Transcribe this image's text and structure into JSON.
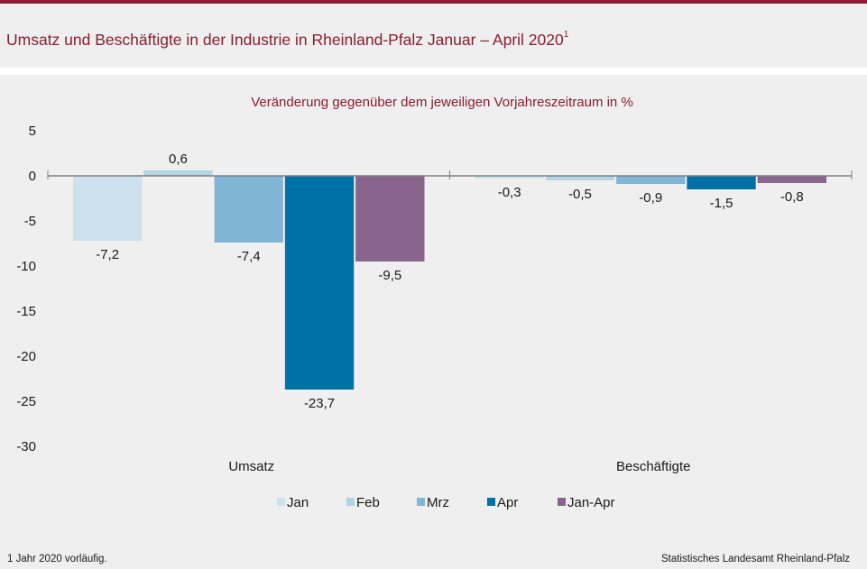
{
  "header": {
    "title": "Umsatz und Beschäftigte in der Industrie in Rheinland-Pfalz Januar – April 2020",
    "title_footnote_mark": "1",
    "accent_color": "#8b1c33"
  },
  "footer": {
    "note": "1 Jahr 2020 vorläufig.",
    "source": "Statistisches Landesamt Rheinland-Pfalz"
  },
  "chart_data": {
    "type": "bar",
    "title": "Veränderung gegenüber dem jeweiligen Vorjahreszeitraum in %",
    "xlabel": "",
    "ylabel": "",
    "categories": [
      "Umsatz",
      "Beschäftigte"
    ],
    "series": [
      {
        "name": "Jan",
        "color": "#cde2ee",
        "values": [
          -7.2,
          -0.3
        ],
        "labels": [
          "-7,2",
          "-0,3"
        ]
      },
      {
        "name": "Feb",
        "color": "#b3d4e5",
        "values": [
          0.6,
          -0.5
        ],
        "labels": [
          "0,6",
          "-0,5"
        ]
      },
      {
        "name": "Mrz",
        "color": "#80b6d3",
        "values": [
          -7.4,
          -0.9
        ],
        "labels": [
          "-7,4",
          "-0,9"
        ]
      },
      {
        "name": "Apr",
        "color": "#0071a4",
        "values": [
          -23.7,
          -1.5
        ],
        "labels": [
          "-23,7",
          "-1,5"
        ]
      },
      {
        "name": "Jan-Apr",
        "color": "#89658d",
        "values": [
          -9.5,
          -0.8
        ],
        "labels": [
          "-9,5",
          "-0,8"
        ]
      }
    ],
    "ylim": [
      -30,
      5
    ],
    "yticks": [
      5,
      0,
      -5,
      -10,
      -15,
      -20,
      -25,
      -30
    ],
    "ytick_labels": [
      "5",
      "0",
      "-5",
      "-10",
      "-15",
      "-20",
      "-25",
      "-30"
    ],
    "grid": false,
    "legend_position": "bottom"
  }
}
